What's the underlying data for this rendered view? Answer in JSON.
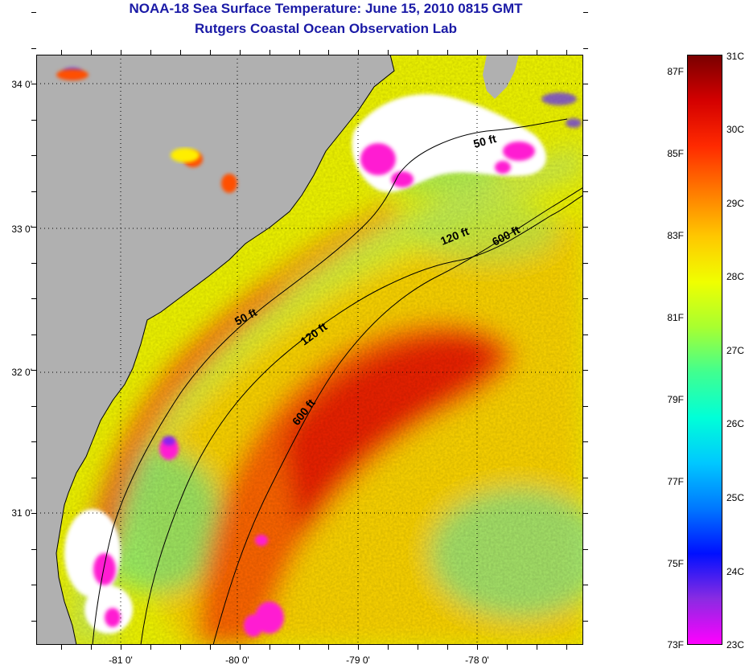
{
  "header": {
    "title": "NOAA-18 Sea Surface Temperature:  June 15, 2010 0815 GMT",
    "subtitle": "Rutgers Coastal Ocean Observation Lab"
  },
  "map": {
    "latitude_labels": [
      "34 0'",
      "33 0'",
      "32 0'",
      "31 0'"
    ],
    "longitude_labels": [
      "-81 0'",
      "-80 0'",
      "-79 0'",
      "-78 0'"
    ],
    "contour_labels": [
      "50 ft",
      "50 ft",
      "120 ft",
      "120 ft",
      "600 ft",
      "600 ft"
    ],
    "land_color": "#b0b0b0",
    "cloud_color": "#ffffff"
  },
  "colorbar": {
    "celsius_labels": [
      "31C",
      "30C",
      "29C",
      "28C",
      "27C",
      "26C",
      "25C",
      "24C",
      "23C"
    ],
    "fahrenheit_labels": [
      "87F",
      "85F",
      "83F",
      "81F",
      "79F",
      "77F",
      "75F",
      "73F"
    ],
    "gradient_stops": [
      "#7a0000",
      "#d40000",
      "#ff2a00",
      "#ff7a00",
      "#ffc800",
      "#f0ff00",
      "#a8ff30",
      "#40ff90",
      "#00ffd8",
      "#00c8ff",
      "#0078ff",
      "#0010ff",
      "#8a2be2",
      "#ff00ff"
    ]
  }
}
